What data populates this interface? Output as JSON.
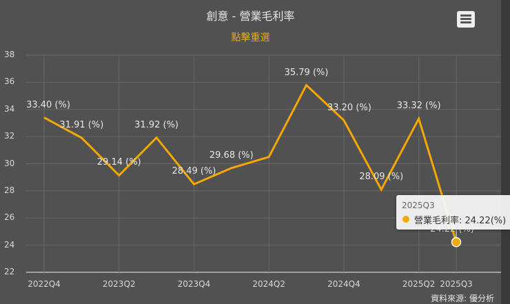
{
  "header": {
    "title": "創意 - 營業毛利率",
    "reset_label": "點擊重選",
    "menu_icon": "hamburger-menu-icon"
  },
  "footer": {
    "credit": "資料來源: 優分析"
  },
  "colors": {
    "line": "#f5a800",
    "background": "#515151",
    "grid": "#666666",
    "text": "#d9d9d9"
  },
  "tooltip": {
    "category": "2025Q3",
    "series_label": "營業毛利率: 24.22(%)"
  },
  "chart_data": {
    "type": "line",
    "title": "創意 - 營業毛利率",
    "subtitle": "點擊重選",
    "xlabel": "",
    "ylabel": "",
    "ylim": [
      22,
      38
    ],
    "yticks": [
      22,
      24,
      26,
      28,
      30,
      32,
      34,
      36,
      38
    ],
    "grid": true,
    "legend": null,
    "x": [
      "2022Q4",
      "2023Q1",
      "2023Q2",
      "2023Q3",
      "2023Q4",
      "2024Q1",
      "2024Q2",
      "2024Q3",
      "2024Q4",
      "2025Q1",
      "2025Q2",
      "2025Q3"
    ],
    "xtick_labels": [
      "2022Q4",
      "2023Q2",
      "2023Q4",
      "2024Q2",
      "2024Q4",
      "2025Q2",
      "2025Q3"
    ],
    "series": [
      {
        "name": "營業毛利率",
        "unit": "(%)",
        "values": [
          33.4,
          31.91,
          29.14,
          31.92,
          28.49,
          29.68,
          30.5,
          35.79,
          33.2,
          28.09,
          33.32,
          24.22
        ],
        "data_labels": [
          "33.40 (%)",
          "31.91 (%)",
          "29.14 (%)",
          "31.92 (%)",
          "28.49 (%)",
          "29.68 (%)",
          "",
          "35.79 (%)",
          "33.20 (%)",
          "28.09 (%)",
          "33.32 (%)",
          "24.22 (%)"
        ]
      }
    ],
    "annotations": [
      "資料來源: 優分析"
    ]
  }
}
